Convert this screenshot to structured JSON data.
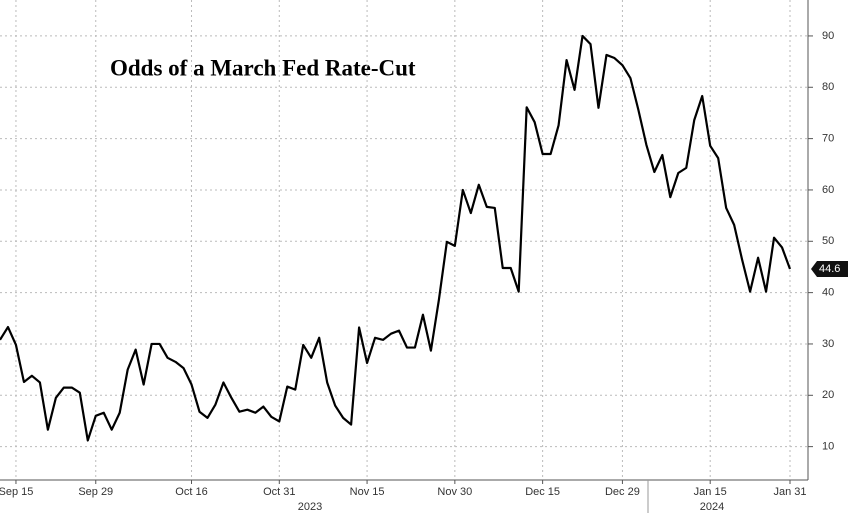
{
  "chart_data": {
    "type": "line",
    "title": "Odds of a March Fed Rate-Cut",
    "categories": [
      null,
      null,
      "Sep 15",
      null,
      null,
      null,
      null,
      null,
      null,
      null,
      null,
      null,
      "Sep 29",
      null,
      null,
      null,
      null,
      null,
      null,
      null,
      null,
      null,
      null,
      null,
      "Oct 16",
      null,
      null,
      null,
      null,
      null,
      null,
      null,
      null,
      null,
      null,
      "Oct 31",
      null,
      null,
      null,
      null,
      null,
      null,
      null,
      null,
      null,
      null,
      "Nov 15",
      null,
      null,
      null,
      null,
      null,
      null,
      null,
      null,
      null,
      null,
      "Nov 30",
      null,
      null,
      null,
      null,
      null,
      null,
      null,
      null,
      null,
      null,
      "Dec 15",
      null,
      null,
      null,
      null,
      null,
      null,
      null,
      null,
      null,
      "Dec 29",
      null,
      null,
      null,
      null,
      null,
      null,
      null,
      null,
      null,
      null,
      "Jan 15",
      null,
      null,
      null,
      null,
      null,
      null,
      null,
      null,
      null,
      "Jan 31"
    ],
    "values": [
      30.8,
      33.3,
      29.8,
      22.6,
      23.8,
      22.5,
      13.3,
      19.5,
      21.5,
      21.5,
      20.5,
      11.2,
      16.0,
      16.6,
      13.3,
      16.6,
      25.0,
      28.9,
      22.1,
      30.0,
      30.0,
      27.3,
      26.5,
      25.3,
      22.1,
      16.8,
      15.6,
      18.2,
      22.5,
      19.5,
      16.8,
      17.2,
      16.6,
      17.8,
      15.8,
      14.9,
      21.7,
      21.1,
      29.8,
      27.3,
      31.2,
      22.5,
      18.0,
      15.6,
      14.3,
      33.2,
      26.3,
      31.2,
      30.8,
      32.0,
      32.6,
      29.3,
      29.3,
      35.7,
      28.7,
      38.6,
      49.9,
      49.1,
      60.0,
      55.5,
      61.0,
      56.7,
      56.5,
      44.8,
      44.8,
      40.2,
      76.1,
      73.2,
      67.0,
      67.0,
      72.6,
      85.3,
      79.5,
      90.0,
      88.4,
      76.0,
      86.3,
      85.7,
      84.3,
      81.8,
      75.6,
      68.8,
      63.5,
      66.8,
      58.6,
      63.3,
      64.3,
      73.6,
      78.3,
      68.6,
      66.2,
      56.5,
      53.2,
      46.4,
      40.2,
      46.8,
      40.2,
      50.7,
      48.8,
      44.6
    ],
    "color": "#000000",
    "x_group_labels": [
      "2023",
      "2024"
    ],
    "ylim": [
      3.5,
      97
    ],
    "yticks": [
      10,
      20,
      30,
      40,
      50,
      60,
      70,
      80,
      90
    ],
    "grid": true
  }
}
